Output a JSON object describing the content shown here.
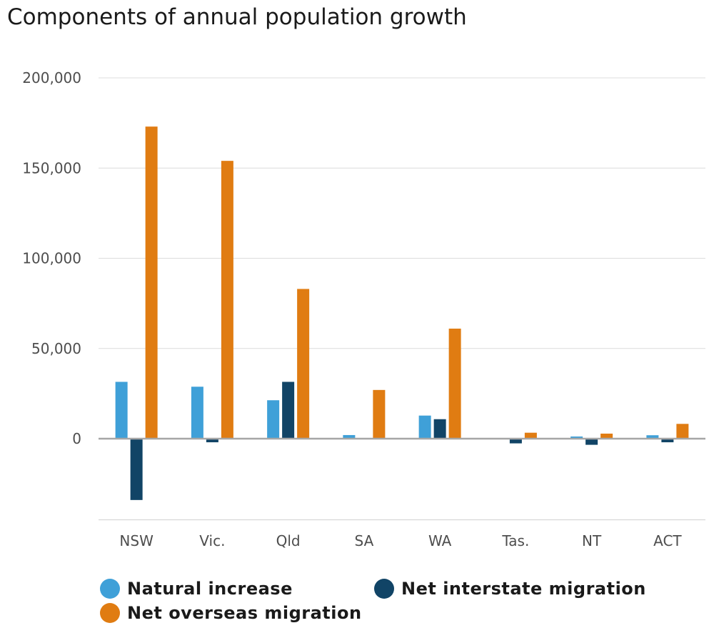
{
  "chart_data": {
    "type": "bar",
    "title": "Components of annual population growth",
    "xlabel": "",
    "ylabel": "",
    "categories": [
      "NSW",
      "Vic.",
      "Qld",
      "SA",
      "WA",
      "Tas.",
      "NT",
      "ACT"
    ],
    "series": [
      {
        "name": "Natural increase",
        "color": "#3fa0d8",
        "values": [
          31500,
          28800,
          21300,
          2000,
          12800,
          0,
          1200,
          1900
        ]
      },
      {
        "name": "Net interstate migration",
        "color": "#114466",
        "values": [
          -34000,
          -2000,
          31500,
          400,
          10800,
          -2600,
          -3400,
          -2000
        ]
      },
      {
        "name": "Net overseas migration",
        "color": "#e07c12",
        "values": [
          173000,
          154000,
          83000,
          27000,
          61000,
          3300,
          2800,
          8200
        ]
      }
    ],
    "y_ticks": [
      "200,000",
      "150,000",
      "100,000",
      "50,000",
      "0"
    ],
    "ylim": [
      -45000,
      200000
    ],
    "grid": true,
    "legend_position": "bottom"
  }
}
